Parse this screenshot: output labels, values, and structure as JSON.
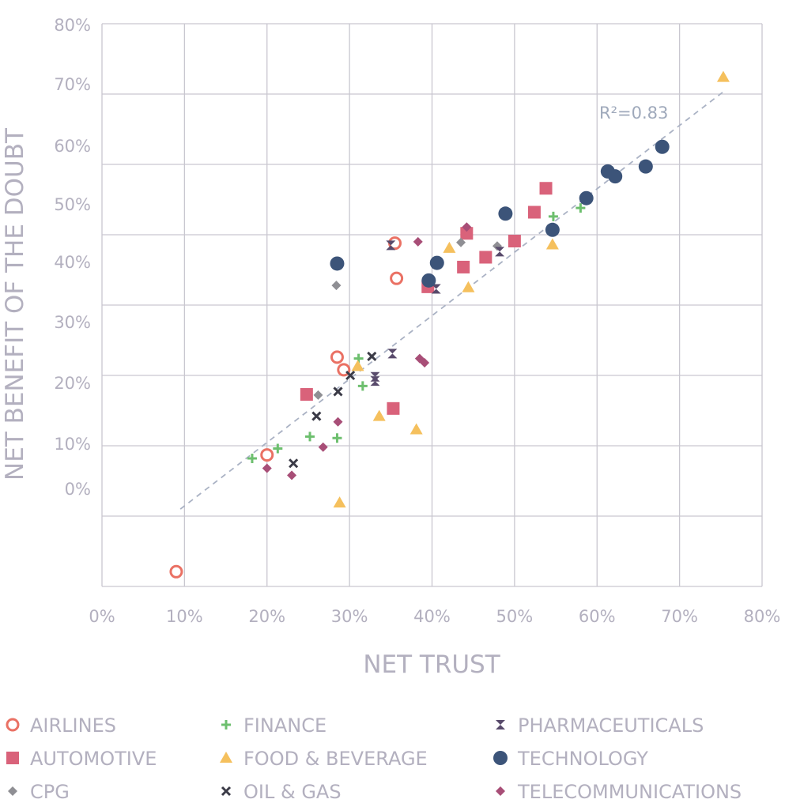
{
  "chart_data": {
    "type": "scatter",
    "title": "",
    "xlabel": "NET TRUST",
    "ylabel": "NET BENEFIT OF THE DOUBT",
    "xlim": [
      0,
      80
    ],
    "ylim": [
      -10,
      70
    ],
    "x_ticks": [
      "0%",
      "10%",
      "20%",
      "30%",
      "40%",
      "50%",
      "60%",
      "70%",
      "80%"
    ],
    "y_ticks": [
      "0%",
      "10%",
      "20%",
      "30%",
      "40%",
      "50%",
      "60%",
      "70%",
      "80%"
    ],
    "grid": true,
    "legend_position": "bottom",
    "annotation": {
      "text": "R²=0.83"
    },
    "trendline": {
      "x": [
        9.5,
        75.5
      ],
      "y": [
        1,
        60.5
      ]
    },
    "series": [
      {
        "name": "AIRLINES",
        "marker": "circle-open",
        "color": "#ea7164",
        "points": [
          [
            9,
            -7.9
          ],
          [
            20,
            8.7
          ],
          [
            28.5,
            22.6
          ],
          [
            29.3,
            20.8
          ],
          [
            35.5,
            38.8
          ],
          [
            35.7,
            33.8
          ]
        ]
      },
      {
        "name": "AUTOMOTIVE",
        "marker": "square",
        "color": "#d9627a",
        "points": [
          [
            24.8,
            17.3
          ],
          [
            35.3,
            15.3
          ],
          [
            39.5,
            32.6
          ],
          [
            43.8,
            35.4
          ],
          [
            44.2,
            40.2
          ],
          [
            46.5,
            36.8
          ],
          [
            50,
            39.1
          ],
          [
            52.4,
            43.2
          ],
          [
            53.8,
            46.6
          ]
        ]
      },
      {
        "name": "CPG",
        "marker": "diamond",
        "color": "#8f8f94",
        "points": [
          [
            26.2,
            17.2
          ],
          [
            28.4,
            32.8
          ],
          [
            43.5,
            38.9
          ],
          [
            47.9,
            38.4
          ]
        ]
      },
      {
        "name": "FINANCE",
        "marker": "plus",
        "color": "#6dbf6e",
        "points": [
          [
            18.2,
            8.2
          ],
          [
            21.3,
            9.6
          ],
          [
            25.2,
            11.3
          ],
          [
            28.5,
            11.1
          ],
          [
            31.1,
            22.4
          ],
          [
            31.6,
            18.5
          ],
          [
            54.7,
            42.6
          ],
          [
            58,
            43.8
          ]
        ]
      },
      {
        "name": "FOOD & BEVERAGE",
        "marker": "triangle",
        "color": "#f5c05d",
        "points": [
          [
            28.8,
            1.9
          ],
          [
            31,
            21.3
          ],
          [
            33.6,
            14.2
          ],
          [
            38.1,
            12.3
          ],
          [
            42.1,
            38.1
          ],
          [
            44.4,
            32.5
          ],
          [
            54.6,
            38.6
          ],
          [
            75.3,
            62.4
          ]
        ]
      },
      {
        "name": "OIL & GAS",
        "marker": "x",
        "color": "#3b3b47",
        "points": [
          [
            23.2,
            7.5
          ],
          [
            26,
            14.2
          ],
          [
            28.6,
            17.7
          ],
          [
            30.1,
            20
          ],
          [
            32.7,
            22.7
          ]
        ]
      },
      {
        "name": "PHARMACEUTICALS",
        "marker": "hourglass",
        "color": "#584a6b",
        "points": [
          [
            33.1,
            19.2
          ],
          [
            33.1,
            19.8
          ],
          [
            35.2,
            23.1
          ],
          [
            35,
            38.5
          ],
          [
            40.5,
            32.3
          ],
          [
            48.2,
            37.6
          ]
        ]
      },
      {
        "name": "TECHNOLOGY",
        "marker": "circle",
        "color": "#3c5479",
        "points": [
          [
            28.5,
            35.9
          ],
          [
            39.6,
            33.5
          ],
          [
            40.6,
            36
          ],
          [
            48.9,
            43
          ],
          [
            54.6,
            40.7
          ],
          [
            58.7,
            45.2
          ],
          [
            61.3,
            49
          ],
          [
            62.2,
            48.3
          ],
          [
            65.9,
            49.7
          ],
          [
            67.9,
            52.5
          ]
        ]
      },
      {
        "name": "TELECOMMUNICATIONS",
        "marker": "diamond",
        "color": "#a84e77",
        "points": [
          [
            20,
            6.8
          ],
          [
            23,
            5.8
          ],
          [
            26.8,
            9.8
          ],
          [
            28.6,
            13.4
          ],
          [
            38.3,
            39
          ],
          [
            38.5,
            22.4
          ],
          [
            39.1,
            21.8
          ],
          [
            44.2,
            41.1
          ]
        ]
      }
    ]
  }
}
